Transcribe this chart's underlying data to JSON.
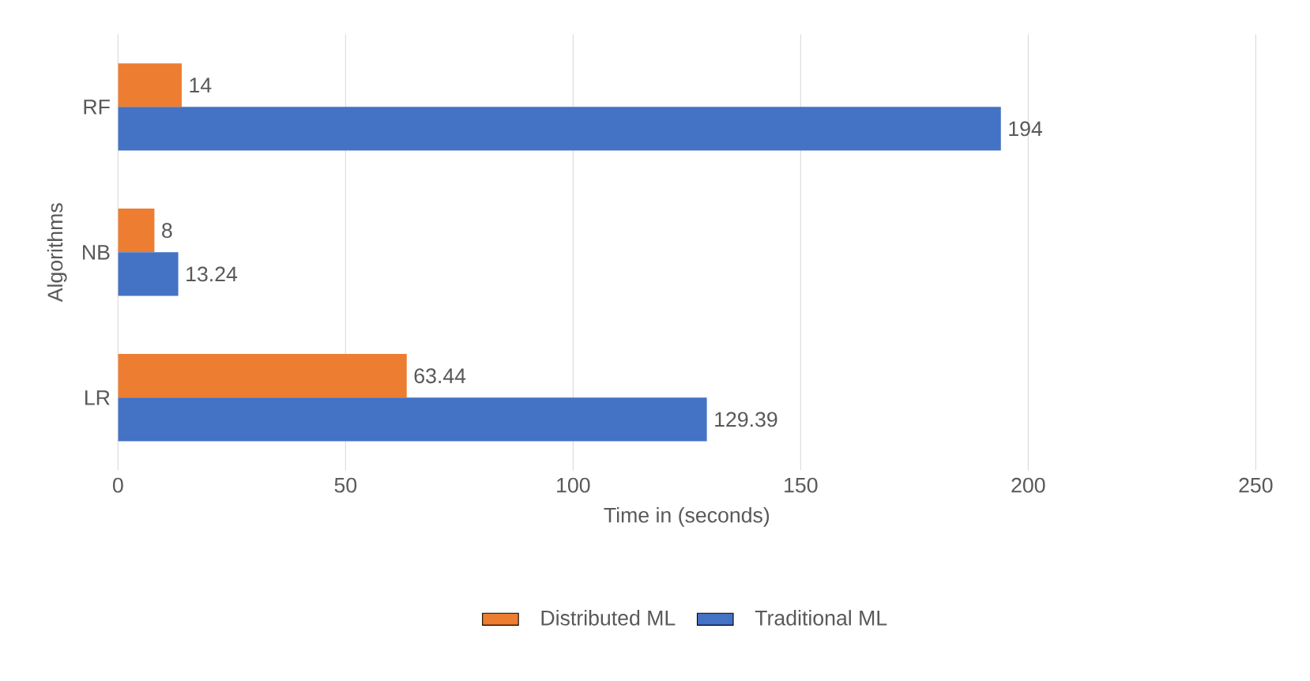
{
  "chart_data": {
    "type": "bar",
    "orientation": "horizontal",
    "xlabel": "Time in (seconds)",
    "ylabel": "Algorithms",
    "categories": [
      "RF",
      "NB",
      "LR"
    ],
    "series": [
      {
        "name": "Distributed ML",
        "color": "#ed7d31",
        "values": [
          14,
          8,
          63.44
        ]
      },
      {
        "name": "Traditional ML",
        "color": "#4472c4",
        "values": [
          194,
          13.24,
          129.39
        ]
      }
    ],
    "xlim": [
      0,
      250
    ],
    "xticks": [
      0,
      50,
      100,
      150,
      200,
      250
    ],
    "grid": "x",
    "legend": "bottom",
    "data_labels": true
  }
}
